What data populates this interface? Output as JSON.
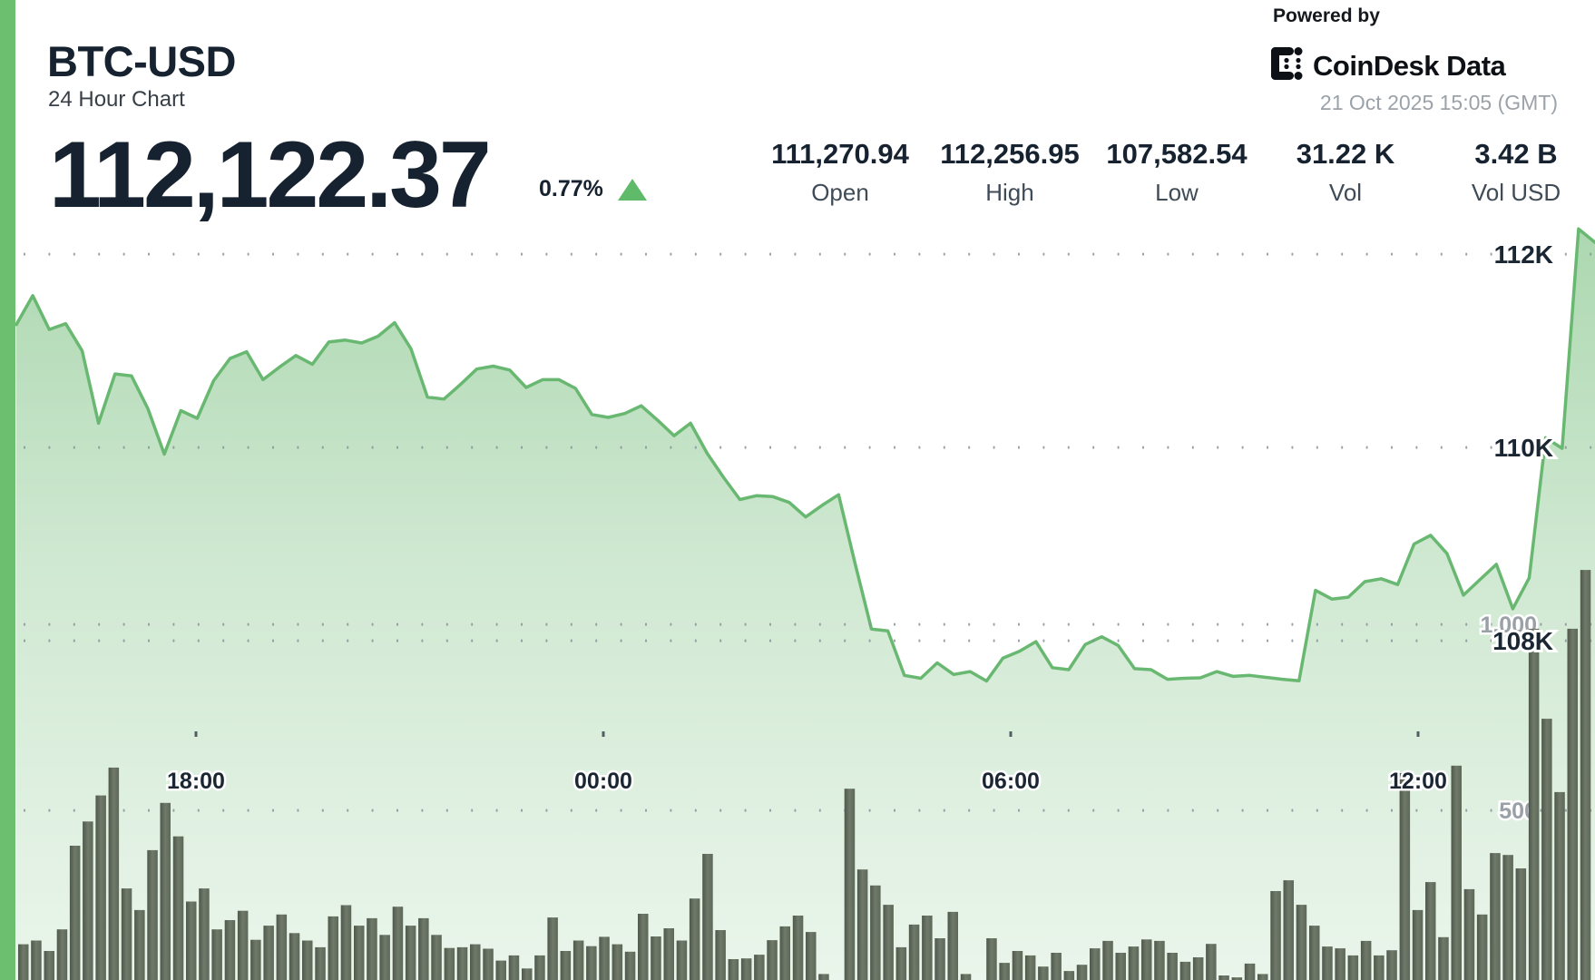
{
  "header": {
    "symbol": "BTC-USD",
    "subtitle": "24 Hour Chart",
    "price": "112,122.37",
    "change_pct": "0.77%",
    "change_direction": "up"
  },
  "stats": [
    {
      "value": "111,270.94",
      "label": "Open"
    },
    {
      "value": "112,256.95",
      "label": "High"
    },
    {
      "value": "107,582.54",
      "label": "Low"
    },
    {
      "value": "31.22 K",
      "label": "Vol"
    },
    {
      "value": "3.42 B",
      "label": "Vol USD"
    }
  ],
  "branding": {
    "powered_by": "Powered by",
    "logo_text": "CoinDesk Data",
    "timestamp": "21 Oct 2025 15:05 (GMT)"
  },
  "colors": {
    "accent_green": "#5fba69",
    "line_green": "#69b871",
    "fill_green": "#74bd7a",
    "bar_olive": "#5e6859",
    "bar_olive_dark": "#4f584b",
    "bar_olive_light": "#707a6a",
    "navy_text": "#1b2633",
    "grid_dot": "#8a929b",
    "axis_gray": "#99a0a6"
  },
  "chart_data": {
    "type": "combo",
    "title": "BTC-USD 24 Hour Chart",
    "legend": "none",
    "grid": "dotted horizontal",
    "price_series": {
      "type": "area",
      "name": "BTC-USD price (USD)",
      "start_time": "15:15 (prev day, GMT)",
      "interval_minutes": 15,
      "open": 111270.94,
      "high": 112256.95,
      "low": 107582.54,
      "last": 112122.37,
      "values": [
        111270,
        111570,
        111220,
        111280,
        111000,
        110250,
        110760,
        110740,
        110400,
        109930,
        110380,
        110300,
        110690,
        110920,
        110990,
        110700,
        110830,
        110950,
        110860,
        111090,
        111110,
        111080,
        111150,
        111290,
        111020,
        110520,
        110500,
        110650,
        110810,
        110840,
        110800,
        110620,
        110700,
        110700,
        110610,
        110340,
        110310,
        110350,
        110430,
        110280,
        110120,
        110250,
        109940,
        109690,
        109460,
        109500,
        109490,
        109430,
        109280,
        109400,
        109510,
        108800,
        108120,
        108100,
        107640,
        107610,
        107770,
        107650,
        107680,
        107582,
        107820,
        107890,
        107990,
        107720,
        107700,
        107960,
        108040,
        107950,
        107710,
        107700,
        107600,
        107610,
        107615,
        107680,
        107630,
        107640,
        107620,
        107600,
        107585,
        108520,
        108430,
        108450,
        108610,
        108640,
        108580,
        109000,
        109090,
        108900,
        108470,
        108630,
        108790,
        108330,
        108650,
        110100,
        109990,
        112260,
        112120
      ]
    },
    "volume_series": {
      "type": "bar",
      "name": "Volume",
      "values": [
        140,
        150,
        122,
        180,
        405,
        470,
        540,
        615,
        290,
        232,
        393,
        520,
        430,
        255,
        290,
        180,
        205,
        230,
        152,
        190,
        220,
        170,
        150,
        132,
        215,
        245,
        190,
        210,
        165,
        241,
        190,
        210,
        165,
        130,
        132,
        140,
        128,
        96,
        110,
        75,
        110,
        212,
        122,
        150,
        135,
        160,
        140,
        120,
        222,
        161,
        183,
        150,
        263,
        383,
        178,
        100,
        102,
        112,
        151,
        188,
        217,
        173,
        60,
        40,
        558,
        341,
        298,
        246,
        132,
        193,
        217,
        156,
        227,
        60,
        40,
        156,
        90,
        122,
        110,
        80,
        117,
        68,
        85,
        129,
        149,
        117,
        134,
        153,
        149,
        117,
        93,
        105,
        141,
        56,
        51,
        88,
        60,
        283,
        312,
        246,
        190,
        134,
        129,
        110,
        149,
        110,
        124,
        600,
        232,
        307,
        159,
        620,
        288,
        220,
        385,
        380,
        344,
        988,
        746,
        549,
        988,
        1146
      ]
    },
    "y_axis_price": {
      "side": "right",
      "labels": [
        "112K",
        "110K",
        "108K"
      ],
      "values": [
        112000,
        110000,
        108000
      ]
    },
    "y_axis_volume": {
      "side": "right",
      "labels": [
        "1,000",
        "500"
      ],
      "values": [
        1000,
        500
      ]
    },
    "x_axis": {
      "labels": [
        "18:00",
        "00:00",
        "06:00",
        "12:00"
      ]
    }
  }
}
